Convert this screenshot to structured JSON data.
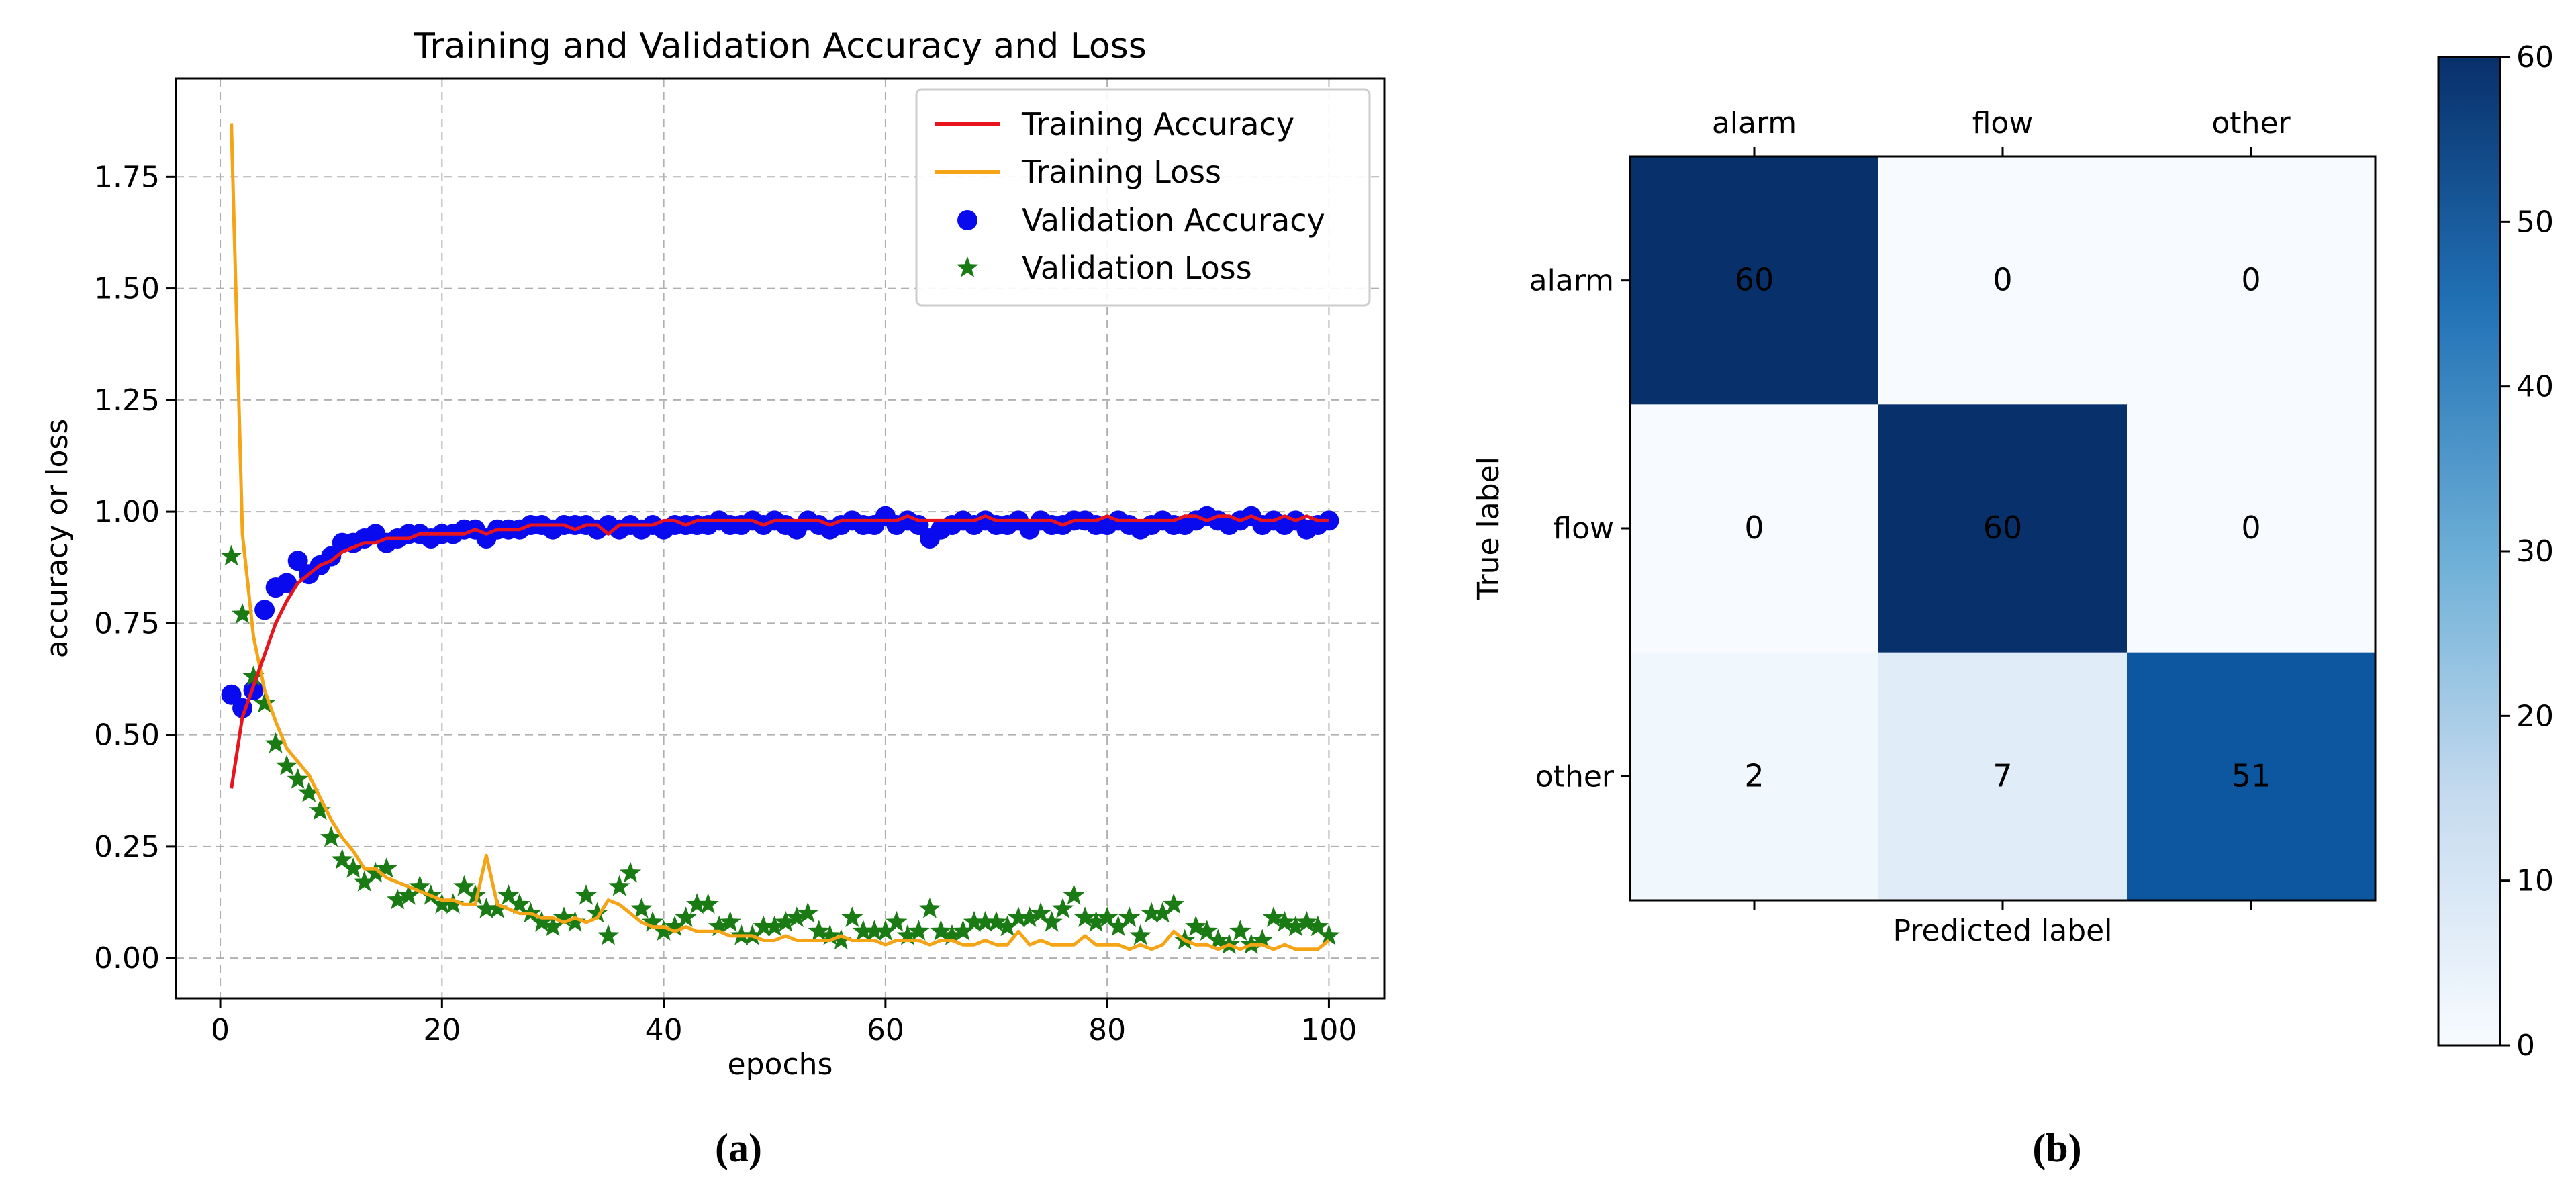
{
  "captions": {
    "a": "(a)",
    "b": "(b)"
  },
  "colors": {
    "training_accuracy": "#e8141e",
    "training_loss": "#f5a415",
    "validation_accuracy": "#0a0aee",
    "validation_loss": "#1a7a14",
    "cmap_low": "#f7fbff",
    "cmap_high": "#08306b"
  },
  "chart_data": [
    {
      "type": "line",
      "title": "Training and Validation Accuracy and Loss",
      "xlabel": "epochs",
      "ylabel": "accuracy or loss",
      "xlim": [
        -4,
        105
      ],
      "ylim": [
        -0.09,
        1.97
      ],
      "xticks": [
        0,
        20,
        40,
        60,
        80,
        100
      ],
      "xtick_labels": [
        "0",
        "20",
        "40",
        "60",
        "80",
        "100"
      ],
      "yticks": [
        0.0,
        0.25,
        0.5,
        0.75,
        1.0,
        1.25,
        1.5,
        1.75
      ],
      "ytick_labels": [
        "0.00",
        "0.25",
        "0.50",
        "0.75",
        "1.00",
        "1.25",
        "1.50",
        "1.75"
      ],
      "grid": true,
      "legend_position": "top-right",
      "series": [
        {
          "name": "Training Accuracy",
          "style": "line",
          "x": [
            1,
            2,
            3,
            4,
            5,
            6,
            7,
            8,
            9,
            10,
            11,
            12,
            13,
            14,
            15,
            16,
            17,
            18,
            19,
            20,
            21,
            22,
            23,
            24,
            25,
            26,
            27,
            28,
            29,
            30,
            31,
            32,
            33,
            34,
            35,
            36,
            37,
            38,
            39,
            40,
            41,
            42,
            43,
            44,
            45,
            46,
            47,
            48,
            49,
            50,
            51,
            52,
            53,
            54,
            55,
            56,
            57,
            58,
            59,
            60,
            61,
            62,
            63,
            64,
            65,
            66,
            67,
            68,
            69,
            70,
            71,
            72,
            73,
            74,
            75,
            76,
            77,
            78,
            79,
            80,
            81,
            82,
            83,
            84,
            85,
            86,
            87,
            88,
            89,
            90,
            91,
            92,
            93,
            94,
            95,
            96,
            97,
            98,
            99,
            100
          ],
          "y": [
            0.38,
            0.54,
            0.61,
            0.68,
            0.75,
            0.8,
            0.84,
            0.86,
            0.88,
            0.89,
            0.91,
            0.92,
            0.93,
            0.93,
            0.94,
            0.94,
            0.94,
            0.95,
            0.95,
            0.95,
            0.95,
            0.95,
            0.96,
            0.95,
            0.96,
            0.96,
            0.96,
            0.97,
            0.97,
            0.97,
            0.97,
            0.96,
            0.97,
            0.97,
            0.95,
            0.97,
            0.97,
            0.97,
            0.97,
            0.98,
            0.98,
            0.97,
            0.98,
            0.98,
            0.98,
            0.98,
            0.98,
            0.98,
            0.97,
            0.98,
            0.98,
            0.98,
            0.98,
            0.98,
            0.97,
            0.98,
            0.98,
            0.98,
            0.98,
            0.98,
            0.98,
            0.99,
            0.98,
            0.98,
            0.98,
            0.98,
            0.98,
            0.98,
            0.99,
            0.98,
            0.98,
            0.98,
            0.98,
            0.98,
            0.98,
            0.97,
            0.98,
            0.98,
            0.98,
            0.99,
            0.98,
            0.98,
            0.98,
            0.98,
            0.98,
            0.98,
            0.99,
            0.99,
            0.98,
            0.99,
            0.99,
            0.98,
            0.99,
            0.98,
            0.98,
            0.99,
            0.98,
            0.99,
            0.98,
            0.98
          ]
        },
        {
          "name": "Training Loss",
          "style": "line",
          "x": [
            1,
            2,
            3,
            4,
            5,
            6,
            7,
            8,
            9,
            10,
            11,
            12,
            13,
            14,
            15,
            16,
            17,
            18,
            19,
            20,
            21,
            22,
            23,
            24,
            25,
            26,
            27,
            28,
            29,
            30,
            31,
            32,
            33,
            34,
            35,
            36,
            37,
            38,
            39,
            40,
            41,
            42,
            43,
            44,
            45,
            46,
            47,
            48,
            49,
            50,
            51,
            52,
            53,
            54,
            55,
            56,
            57,
            58,
            59,
            60,
            61,
            62,
            63,
            64,
            65,
            66,
            67,
            68,
            69,
            70,
            71,
            72,
            73,
            74,
            75,
            76,
            77,
            78,
            79,
            80,
            81,
            82,
            83,
            84,
            85,
            86,
            87,
            88,
            89,
            90,
            91,
            92,
            93,
            94,
            95,
            96,
            97,
            98,
            99,
            100
          ],
          "y": [
            1.87,
            0.95,
            0.72,
            0.6,
            0.53,
            0.47,
            0.44,
            0.41,
            0.36,
            0.31,
            0.27,
            0.24,
            0.2,
            0.2,
            0.18,
            0.17,
            0.16,
            0.15,
            0.14,
            0.13,
            0.13,
            0.12,
            0.12,
            0.23,
            0.12,
            0.11,
            0.1,
            0.1,
            0.09,
            0.09,
            0.08,
            0.09,
            0.08,
            0.09,
            0.13,
            0.12,
            0.1,
            0.08,
            0.07,
            0.07,
            0.06,
            0.07,
            0.06,
            0.06,
            0.06,
            0.05,
            0.05,
            0.05,
            0.04,
            0.04,
            0.05,
            0.04,
            0.04,
            0.04,
            0.04,
            0.05,
            0.04,
            0.04,
            0.04,
            0.03,
            0.04,
            0.04,
            0.04,
            0.03,
            0.04,
            0.04,
            0.03,
            0.03,
            0.04,
            0.03,
            0.03,
            0.06,
            0.03,
            0.04,
            0.03,
            0.03,
            0.03,
            0.05,
            0.03,
            0.03,
            0.03,
            0.02,
            0.03,
            0.02,
            0.03,
            0.06,
            0.04,
            0.03,
            0.03,
            0.02,
            0.03,
            0.02,
            0.03,
            0.03,
            0.02,
            0.03,
            0.02,
            0.02,
            0.02,
            0.04
          ]
        },
        {
          "name": "Validation Accuracy",
          "style": "scatter-circle",
          "x": [
            1,
            2,
            3,
            4,
            5,
            6,
            7,
            8,
            9,
            10,
            11,
            12,
            13,
            14,
            15,
            16,
            17,
            18,
            19,
            20,
            21,
            22,
            23,
            24,
            25,
            26,
            27,
            28,
            29,
            30,
            31,
            32,
            33,
            34,
            35,
            36,
            37,
            38,
            39,
            40,
            41,
            42,
            43,
            44,
            45,
            46,
            47,
            48,
            49,
            50,
            51,
            52,
            53,
            54,
            55,
            56,
            57,
            58,
            59,
            60,
            61,
            62,
            63,
            64,
            65,
            66,
            67,
            68,
            69,
            70,
            71,
            72,
            73,
            74,
            75,
            76,
            77,
            78,
            79,
            80,
            81,
            82,
            83,
            84,
            85,
            86,
            87,
            88,
            89,
            90,
            91,
            92,
            93,
            94,
            95,
            96,
            97,
            98,
            99,
            100
          ],
          "y": [
            0.59,
            0.56,
            0.6,
            0.78,
            0.83,
            0.84,
            0.89,
            0.86,
            0.88,
            0.9,
            0.93,
            0.93,
            0.94,
            0.95,
            0.93,
            0.94,
            0.95,
            0.95,
            0.94,
            0.95,
            0.95,
            0.96,
            0.96,
            0.94,
            0.96,
            0.96,
            0.96,
            0.97,
            0.97,
            0.96,
            0.97,
            0.97,
            0.97,
            0.96,
            0.97,
            0.96,
            0.97,
            0.96,
            0.97,
            0.96,
            0.97,
            0.97,
            0.97,
            0.97,
            0.98,
            0.97,
            0.97,
            0.98,
            0.97,
            0.98,
            0.97,
            0.96,
            0.98,
            0.97,
            0.96,
            0.97,
            0.98,
            0.97,
            0.97,
            0.99,
            0.97,
            0.98,
            0.97,
            0.94,
            0.96,
            0.97,
            0.98,
            0.97,
            0.98,
            0.97,
            0.97,
            0.98,
            0.96,
            0.98,
            0.97,
            0.97,
            0.98,
            0.98,
            0.97,
            0.97,
            0.98,
            0.97,
            0.96,
            0.97,
            0.98,
            0.97,
            0.97,
            0.98,
            0.99,
            0.98,
            0.97,
            0.98,
            0.99,
            0.97,
            0.98,
            0.97,
            0.98,
            0.96,
            0.97,
            0.98
          ]
        },
        {
          "name": "Validation Loss",
          "style": "scatter-star",
          "x": [
            1,
            2,
            3,
            4,
            5,
            6,
            7,
            8,
            9,
            10,
            11,
            12,
            13,
            14,
            15,
            16,
            17,
            18,
            19,
            20,
            21,
            22,
            23,
            24,
            25,
            26,
            27,
            28,
            29,
            30,
            31,
            32,
            33,
            34,
            35,
            36,
            37,
            38,
            39,
            40,
            41,
            42,
            43,
            44,
            45,
            46,
            47,
            48,
            49,
            50,
            51,
            52,
            53,
            54,
            55,
            56,
            57,
            58,
            59,
            60,
            61,
            62,
            63,
            64,
            65,
            66,
            67,
            68,
            69,
            70,
            71,
            72,
            73,
            74,
            75,
            76,
            77,
            78,
            79,
            80,
            81,
            82,
            83,
            84,
            85,
            86,
            87,
            88,
            89,
            90,
            91,
            92,
            93,
            94,
            95,
            96,
            97,
            98,
            99,
            100
          ],
          "y": [
            0.9,
            0.77,
            0.63,
            0.57,
            0.48,
            0.43,
            0.4,
            0.37,
            0.33,
            0.27,
            0.22,
            0.2,
            0.17,
            0.19,
            0.2,
            0.13,
            0.14,
            0.16,
            0.14,
            0.12,
            0.12,
            0.16,
            0.14,
            0.11,
            0.11,
            0.14,
            0.12,
            0.1,
            0.08,
            0.07,
            0.09,
            0.08,
            0.14,
            0.1,
            0.05,
            0.16,
            0.19,
            0.11,
            0.08,
            0.06,
            0.07,
            0.09,
            0.12,
            0.12,
            0.07,
            0.08,
            0.05,
            0.05,
            0.07,
            0.07,
            0.08,
            0.09,
            0.1,
            0.06,
            0.05,
            0.04,
            0.09,
            0.06,
            0.06,
            0.06,
            0.08,
            0.05,
            0.06,
            0.11,
            0.06,
            0.05,
            0.06,
            0.08,
            0.08,
            0.08,
            0.07,
            0.09,
            0.09,
            0.1,
            0.08,
            0.11,
            0.14,
            0.09,
            0.08,
            0.09,
            0.07,
            0.09,
            0.05,
            0.1,
            0.1,
            0.12,
            0.04,
            0.07,
            0.06,
            0.04,
            0.03,
            0.06,
            0.03,
            0.04,
            0.09,
            0.08,
            0.07,
            0.08,
            0.07,
            0.05
          ]
        }
      ]
    },
    {
      "type": "heatmap",
      "title": "",
      "xlabel": "Predicted label",
      "ylabel": "True label",
      "x_categories": [
        "alarm",
        "flow",
        "other"
      ],
      "y_categories": [
        "alarm",
        "flow",
        "other"
      ],
      "values": [
        [
          60,
          0,
          0
        ],
        [
          0,
          60,
          0
        ],
        [
          2,
          7,
          51
        ]
      ],
      "vmin": 0,
      "vmax": 60,
      "colorbar_ticks": [
        0,
        10,
        20,
        30,
        40,
        50,
        60
      ],
      "colorbar_tick_labels": [
        "0",
        "10",
        "20",
        "30",
        "40",
        "50",
        "60"
      ]
    }
  ]
}
